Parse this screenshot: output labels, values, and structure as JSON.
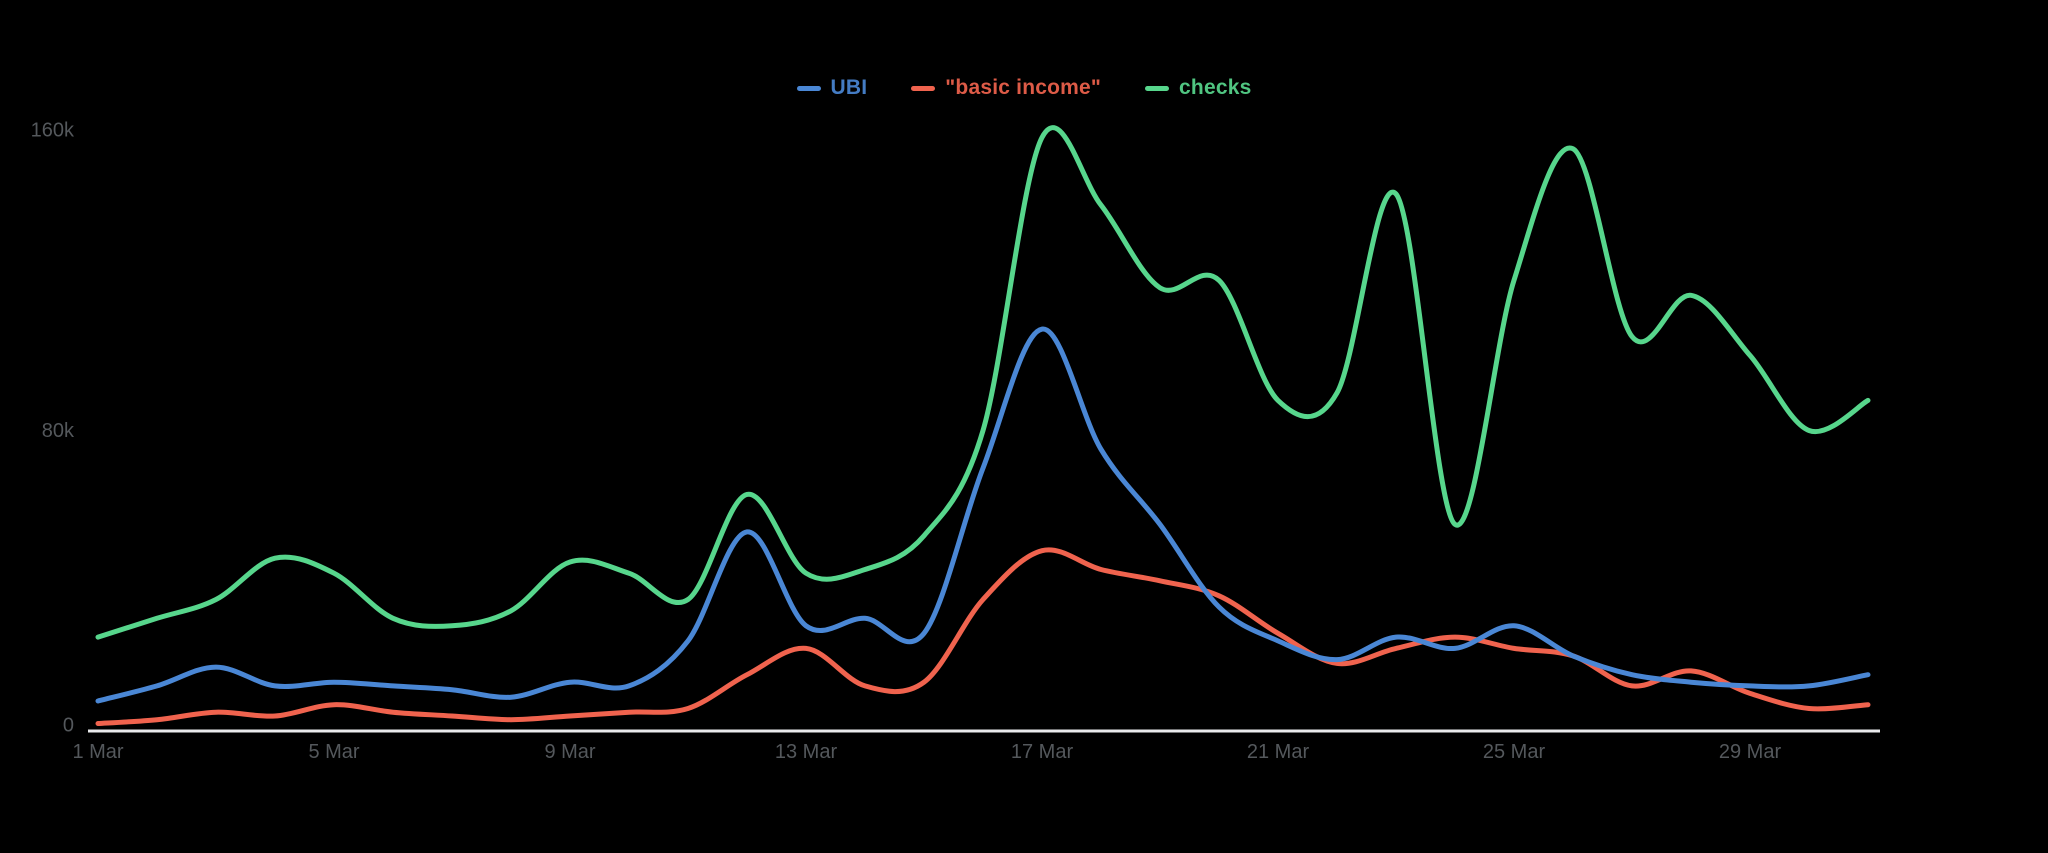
{
  "chart_data": {
    "type": "line",
    "title": "",
    "xlabel": "",
    "ylabel": "",
    "background_color": "#000000",
    "axis_color": "#e9eaec",
    "tick_text_color": "#54585c",
    "grid": false,
    "legend_position": "top-center",
    "ylim": [
      0,
      160000
    ],
    "y_ticks": [
      {
        "value": 0,
        "label": "0"
      },
      {
        "value": 80000,
        "label": "80k"
      },
      {
        "value": 160000,
        "label": "160k"
      }
    ],
    "categories": [
      "1 Mar",
      "2 Mar",
      "3 Mar",
      "4 Mar",
      "5 Mar",
      "6 Mar",
      "7 Mar",
      "8 Mar",
      "9 Mar",
      "10 Mar",
      "11 Mar",
      "12 Mar",
      "13 Mar",
      "14 Mar",
      "15 Mar",
      "16 Mar",
      "17 Mar",
      "18 Mar",
      "19 Mar",
      "20 Mar",
      "21 Mar",
      "22 Mar",
      "23 Mar",
      "24 Mar",
      "25 Mar",
      "26 Mar",
      "27 Mar",
      "28 Mar",
      "29 Mar",
      "30 Mar",
      "31 Mar"
    ],
    "x_tick_indices": [
      0,
      4,
      8,
      12,
      16,
      20,
      24,
      28
    ],
    "series": [
      {
        "name": "UBI",
        "color": "#4a87d5",
        "values": [
          8000,
          12000,
          17000,
          12000,
          13000,
          12000,
          11000,
          9000,
          13000,
          12000,
          24000,
          53000,
          28000,
          30000,
          26000,
          70000,
          107000,
          75000,
          55000,
          33000,
          24000,
          19000,
          25000,
          22000,
          28000,
          20000,
          15000,
          13000,
          12000,
          12000,
          15000
        ]
      },
      {
        "name": "\"basic income\"",
        "color": "#f0634e",
        "values": [
          2000,
          3000,
          5000,
          4000,
          7000,
          5000,
          4000,
          3000,
          4000,
          5000,
          6000,
          15000,
          22000,
          12000,
          13000,
          35000,
          48000,
          43000,
          40000,
          36000,
          26000,
          18000,
          22000,
          25000,
          22000,
          20000,
          12000,
          16000,
          10000,
          6000,
          7000
        ]
      },
      {
        "name": "checks",
        "color": "#57d68c",
        "values": [
          25000,
          30000,
          35000,
          46000,
          42000,
          30000,
          28000,
          32000,
          45000,
          42000,
          35000,
          63000,
          42000,
          43000,
          52000,
          80000,
          158000,
          140000,
          118000,
          120000,
          88000,
          90000,
          143000,
          55000,
          120000,
          155000,
          105000,
          116000,
          100000,
          80000,
          88000
        ]
      }
    ]
  }
}
